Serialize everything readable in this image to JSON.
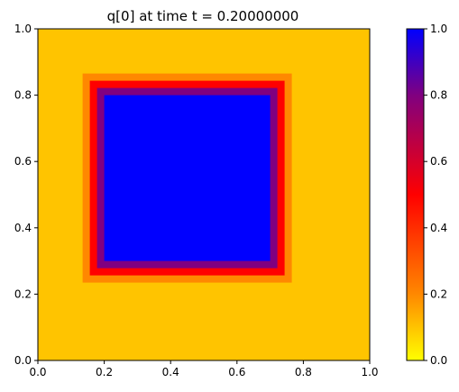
{
  "chart_data": {
    "type": "heatmap",
    "title": "q[0] at time t =     0.20000000",
    "xlabel": "",
    "ylabel": "",
    "xlim": [
      0.0,
      1.0
    ],
    "ylim": [
      0.0,
      1.0
    ],
    "x_ticks": [
      "0.0",
      "0.2",
      "0.4",
      "0.6",
      "0.8",
      "1.0"
    ],
    "y_ticks": [
      "0.0",
      "0.2",
      "0.4",
      "0.6",
      "0.8",
      "1.0"
    ],
    "grid": false,
    "colorbar": {
      "range": [
        0.0,
        1.0
      ],
      "ticks": [
        "0.0",
        "0.2",
        "0.4",
        "0.6",
        "0.8",
        "1.0"
      ],
      "colormap": [
        {
          "v": 0.0,
          "color": "#ffff00"
        },
        {
          "v": 0.2,
          "color": "#ff8800"
        },
        {
          "v": 0.5,
          "color": "#ff0000"
        },
        {
          "v": 0.8,
          "color": "#800080"
        },
        {
          "v": 1.0,
          "color": "#0000ff"
        }
      ]
    },
    "field": {
      "background_value": 0.1,
      "square": {
        "x0": 0.2,
        "x1": 0.7,
        "y0": 0.3,
        "y1": 0.8,
        "value": 1.0
      },
      "edge_values": [
        0.2,
        0.5,
        0.8
      ]
    }
  }
}
